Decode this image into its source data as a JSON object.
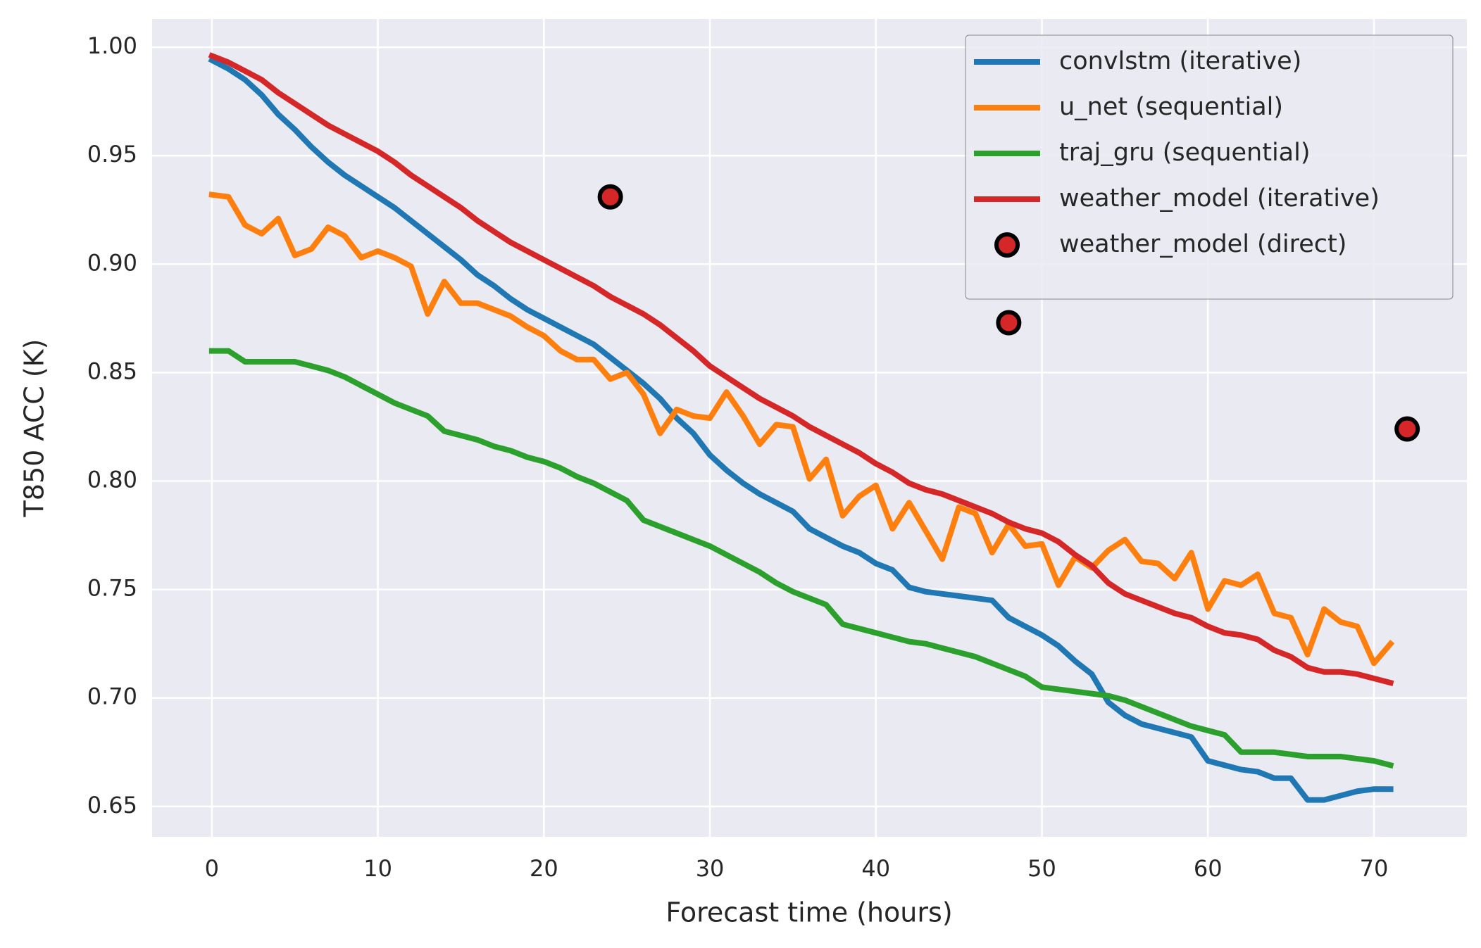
{
  "chart_data": {
    "type": "line",
    "xlabel": "Forecast time (hours)",
    "ylabel": "T850 ACC (K)",
    "x": [
      0,
      1,
      2,
      3,
      4,
      5,
      6,
      7,
      8,
      9,
      10,
      11,
      12,
      13,
      14,
      15,
      16,
      17,
      18,
      19,
      20,
      21,
      22,
      23,
      24,
      25,
      26,
      27,
      28,
      29,
      30,
      31,
      32,
      33,
      34,
      35,
      36,
      37,
      38,
      39,
      40,
      41,
      42,
      43,
      44,
      45,
      46,
      47,
      48,
      49,
      50,
      51,
      52,
      53,
      54,
      55,
      56,
      57,
      58,
      59,
      60,
      61,
      62,
      63,
      64,
      65,
      66,
      67,
      68,
      69,
      70,
      71
    ],
    "series": [
      {
        "name": "convlstm (iterative)",
        "color": "#1f77b4",
        "values": [
          0.994,
          0.99,
          0.985,
          0.978,
          0.969,
          0.962,
          0.954,
          0.947,
          0.941,
          0.936,
          0.931,
          0.926,
          0.92,
          0.914,
          0.908,
          0.902,
          0.895,
          0.89,
          0.884,
          0.879,
          0.875,
          0.871,
          0.867,
          0.863,
          0.857,
          0.851,
          0.845,
          0.838,
          0.829,
          0.822,
          0.812,
          0.805,
          0.799,
          0.794,
          0.79,
          0.786,
          0.778,
          0.774,
          0.77,
          0.767,
          0.762,
          0.759,
          0.751,
          0.749,
          0.748,
          0.747,
          0.746,
          0.745,
          0.737,
          0.733,
          0.729,
          0.724,
          0.717,
          0.711,
          0.698,
          0.692,
          0.688,
          0.686,
          0.684,
          0.682,
          0.671,
          0.669,
          0.667,
          0.666,
          0.663,
          0.663,
          0.653,
          0.653,
          0.655,
          0.657,
          0.658,
          0.658
        ]
      },
      {
        "name": "u_net (sequential)",
        "color": "#ff7f0e",
        "values": [
          0.932,
          0.931,
          0.918,
          0.914,
          0.921,
          0.904,
          0.907,
          0.917,
          0.913,
          0.903,
          0.906,
          0.903,
          0.899,
          0.877,
          0.892,
          0.882,
          0.882,
          0.879,
          0.876,
          0.871,
          0.867,
          0.86,
          0.856,
          0.856,
          0.847,
          0.85,
          0.84,
          0.822,
          0.833,
          0.83,
          0.829,
          0.841,
          0.83,
          0.817,
          0.826,
          0.825,
          0.801,
          0.81,
          0.784,
          0.793,
          0.798,
          0.778,
          0.79,
          0.777,
          0.764,
          0.788,
          0.785,
          0.767,
          0.78,
          0.77,
          0.771,
          0.752,
          0.765,
          0.76,
          0.768,
          0.773,
          0.763,
          0.762,
          0.755,
          0.767,
          0.741,
          0.754,
          0.752,
          0.757,
          0.739,
          0.737,
          0.72,
          0.741,
          0.735,
          0.733,
          0.716,
          0.725
        ]
      },
      {
        "name": "traj_gru (sequential)",
        "color": "#2ca02c",
        "values": [
          0.86,
          0.86,
          0.855,
          0.855,
          0.855,
          0.855,
          0.853,
          0.851,
          0.848,
          0.844,
          0.84,
          0.836,
          0.833,
          0.83,
          0.823,
          0.821,
          0.819,
          0.816,
          0.814,
          0.811,
          0.809,
          0.806,
          0.802,
          0.799,
          0.795,
          0.791,
          0.782,
          0.779,
          0.776,
          0.773,
          0.77,
          0.766,
          0.762,
          0.758,
          0.753,
          0.749,
          0.746,
          0.743,
          0.734,
          0.732,
          0.73,
          0.728,
          0.726,
          0.725,
          0.723,
          0.721,
          0.719,
          0.716,
          0.713,
          0.71,
          0.705,
          0.704,
          0.703,
          0.702,
          0.701,
          0.699,
          0.696,
          0.693,
          0.69,
          0.687,
          0.685,
          0.683,
          0.675,
          0.675,
          0.675,
          0.674,
          0.673,
          0.673,
          0.673,
          0.672,
          0.671,
          0.669
        ]
      },
      {
        "name": "weather_model (iterative)",
        "color": "#d62728",
        "values": [
          0.996,
          0.993,
          0.989,
          0.985,
          0.979,
          0.974,
          0.969,
          0.964,
          0.96,
          0.956,
          0.952,
          0.947,
          0.941,
          0.936,
          0.931,
          0.926,
          0.92,
          0.915,
          0.91,
          0.906,
          0.902,
          0.898,
          0.894,
          0.89,
          0.885,
          0.881,
          0.877,
          0.872,
          0.866,
          0.86,
          0.853,
          0.848,
          0.843,
          0.838,
          0.834,
          0.83,
          0.825,
          0.821,
          0.817,
          0.813,
          0.808,
          0.804,
          0.799,
          0.796,
          0.794,
          0.791,
          0.788,
          0.785,
          0.781,
          0.778,
          0.776,
          0.772,
          0.766,
          0.761,
          0.753,
          0.748,
          0.745,
          0.742,
          0.739,
          0.737,
          0.733,
          0.73,
          0.729,
          0.727,
          0.722,
          0.719,
          0.714,
          0.712,
          0.712,
          0.711,
          0.709,
          0.707
        ]
      },
      {
        "name": "weather_model (direct)",
        "color": "#d62728",
        "type": "scatter",
        "x": [
          24,
          48,
          72
        ],
        "values": [
          0.931,
          0.873,
          0.824
        ]
      }
    ],
    "xlim": [
      -3.6,
      75.6
    ],
    "ylim": [
      0.636,
      1.013
    ],
    "xticks": [
      0,
      10,
      20,
      30,
      40,
      50,
      60,
      70
    ],
    "yticks": [
      {
        "value": 0.65,
        "label": "0.65"
      },
      {
        "value": 0.7,
        "label": "0.70"
      },
      {
        "value": 0.75,
        "label": "0.75"
      },
      {
        "value": 0.8,
        "label": "0.80"
      },
      {
        "value": 0.85,
        "label": "0.85"
      },
      {
        "value": 0.9,
        "label": "0.90"
      },
      {
        "value": 0.95,
        "label": "0.95"
      },
      {
        "value": 1.0,
        "label": "1.00"
      }
    ],
    "grid": true,
    "legend": "upper right"
  }
}
